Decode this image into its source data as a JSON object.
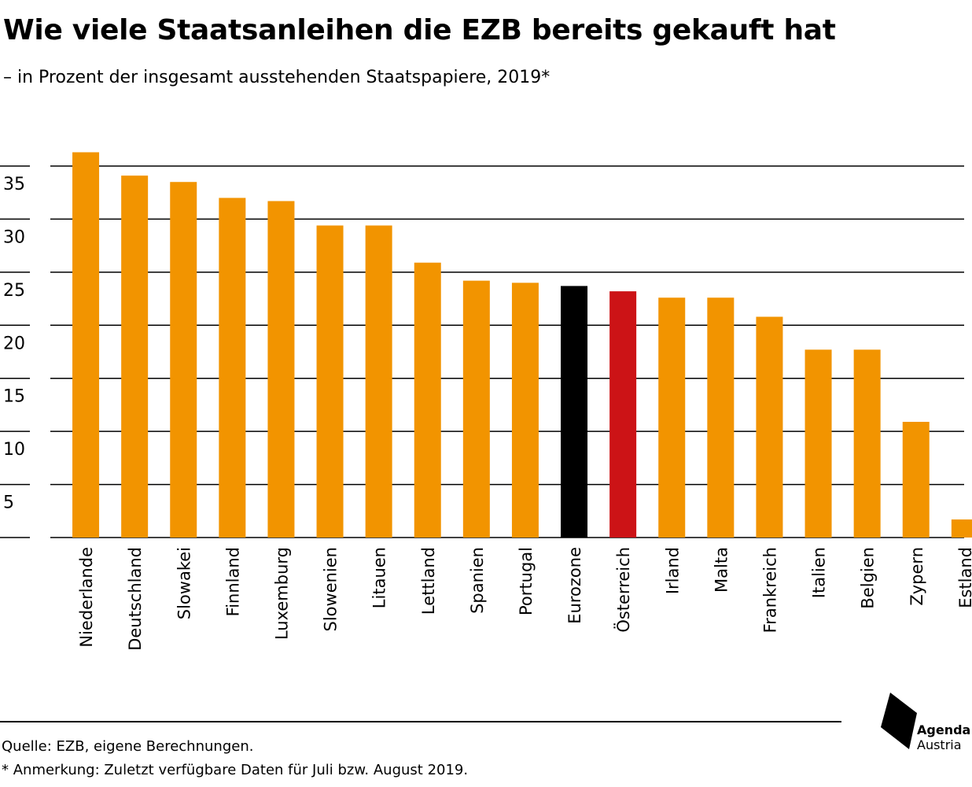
{
  "header": {
    "title": "Wie viele Staatsanleihen die EZB bereits gekauft hat",
    "subtitle": "– in Prozent der insgesamt ausstehenden Staatspapiere, 2019*"
  },
  "chart_data": {
    "type": "bar",
    "title": "Wie viele Staatsanleihen die EZB bereits gekauft hat",
    "subtitle": "– in Prozent der insgesamt ausstehenden Staatspapiere, 2019*",
    "categories": [
      "Niederlande",
      "Deutschland",
      "Slowakei",
      "Finnland",
      "Luxemburg",
      "Slowenien",
      "Litauen",
      "Lettland",
      "Spanien",
      "Portugal",
      "Eurozone",
      "Österreich",
      "Irland",
      "Malta",
      "Frankreich",
      "Italien",
      "Belgien",
      "Zypern",
      "Estland"
    ],
    "values": [
      36.3,
      34.1,
      33.5,
      32.0,
      31.7,
      29.4,
      29.4,
      25.9,
      24.2,
      24.0,
      23.7,
      23.2,
      22.6,
      22.6,
      20.8,
      17.7,
      17.7,
      10.9,
      1.7
    ],
    "bar_colors": [
      "#f29400",
      "#f29400",
      "#f29400",
      "#f29400",
      "#f29400",
      "#f29400",
      "#f29400",
      "#f29400",
      "#f29400",
      "#f29400",
      "#000000",
      "#cc1316",
      "#f29400",
      "#f29400",
      "#f29400",
      "#f29400",
      "#f29400",
      "#f29400",
      "#f29400"
    ],
    "ylim": [
      0,
      35
    ],
    "yticks": [
      5,
      10,
      15,
      20,
      25,
      30,
      35
    ],
    "xlabel": "",
    "ylabel": "",
    "grid": true,
    "legend": "none"
  },
  "colors": {
    "default_bar": "#f29400",
    "eurozone_bar": "#000000",
    "austria_bar": "#cc1316",
    "gridline": "#000000"
  },
  "footer": {
    "source": "Quelle: EZB, eigene Berechnungen.",
    "note": "* Anmerkung: Zuletzt verfügbare Daten für Juli bzw. August 2019."
  },
  "logo": {
    "line1": "Agenda",
    "line2": "Austria"
  }
}
